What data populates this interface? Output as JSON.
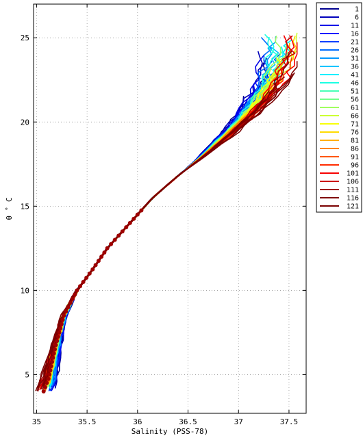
{
  "chart_data": {
    "type": "line",
    "xlabel": "Salinity (PSS-78)",
    "ylabel": "θ ˚ C",
    "xlim": [
      34.97,
      37.67
    ],
    "ylim": [
      2.7,
      27.0
    ],
    "xticks": [
      "35",
      "35.5",
      "36",
      "36.5",
      "37",
      "37.5"
    ],
    "xtick_values": [
      35,
      35.5,
      36,
      36.5,
      37,
      37.5
    ],
    "yticks": [
      "5",
      "10",
      "15",
      "20",
      "25"
    ],
    "ytick_values": [
      5,
      10,
      15,
      20,
      25
    ],
    "grid": true,
    "legend_position": "outside-right-top",
    "series": [
      {
        "name": "1",
        "color": "#00008f"
      },
      {
        "name": "6",
        "color": "#0000bb"
      },
      {
        "name": "11",
        "color": "#0000e8"
      },
      {
        "name": "16",
        "color": "#0014ff"
      },
      {
        "name": "21",
        "color": "#0040ff"
      },
      {
        "name": "26",
        "color": "#006cff"
      },
      {
        "name": "31",
        "color": "#0098ff"
      },
      {
        "name": "36",
        "color": "#00c4ff"
      },
      {
        "name": "41",
        "color": "#00f0ff"
      },
      {
        "name": "46",
        "color": "#1cffe3"
      },
      {
        "name": "51",
        "color": "#48ffb7"
      },
      {
        "name": "56",
        "color": "#74ff8b"
      },
      {
        "name": "61",
        "color": "#a0ff5f"
      },
      {
        "name": "66",
        "color": "#ccff33"
      },
      {
        "name": "71",
        "color": "#f8ff07"
      },
      {
        "name": "76",
        "color": "#ffdb00"
      },
      {
        "name": "81",
        "color": "#ffaf00"
      },
      {
        "name": "86",
        "color": "#ff8300"
      },
      {
        "name": "91",
        "color": "#ff5700"
      },
      {
        "name": "96",
        "color": "#ff2b00"
      },
      {
        "name": "101",
        "color": "#f70000"
      },
      {
        "name": "106",
        "color": "#cb0000"
      },
      {
        "name": "111",
        "color": "#9f0000"
      },
      {
        "name": "116",
        "color": "#800000"
      },
      {
        "name": "121",
        "color": "#7a0000"
      }
    ],
    "profile_backbone": [
      {
        "x": 35.07,
        "y": 4.0
      },
      {
        "x": 35.12,
        "y": 4.8
      },
      {
        "x": 35.18,
        "y": 6.5
      },
      {
        "x": 35.27,
        "y": 8.5
      },
      {
        "x": 35.4,
        "y": 10.0
      },
      {
        "x": 35.55,
        "y": 11.2
      },
      {
        "x": 35.7,
        "y": 12.5
      },
      {
        "x": 35.85,
        "y": 13.5
      },
      {
        "x": 36.0,
        "y": 14.5
      },
      {
        "x": 36.15,
        "y": 15.5
      },
      {
        "x": 36.4,
        "y": 16.8
      },
      {
        "x": 36.65,
        "y": 18.0
      },
      {
        "x": 36.9,
        "y": 19.3
      },
      {
        "x": 37.1,
        "y": 20.5
      },
      {
        "x": 37.3,
        "y": 22.0
      },
      {
        "x": 37.45,
        "y": 24.0
      }
    ]
  }
}
